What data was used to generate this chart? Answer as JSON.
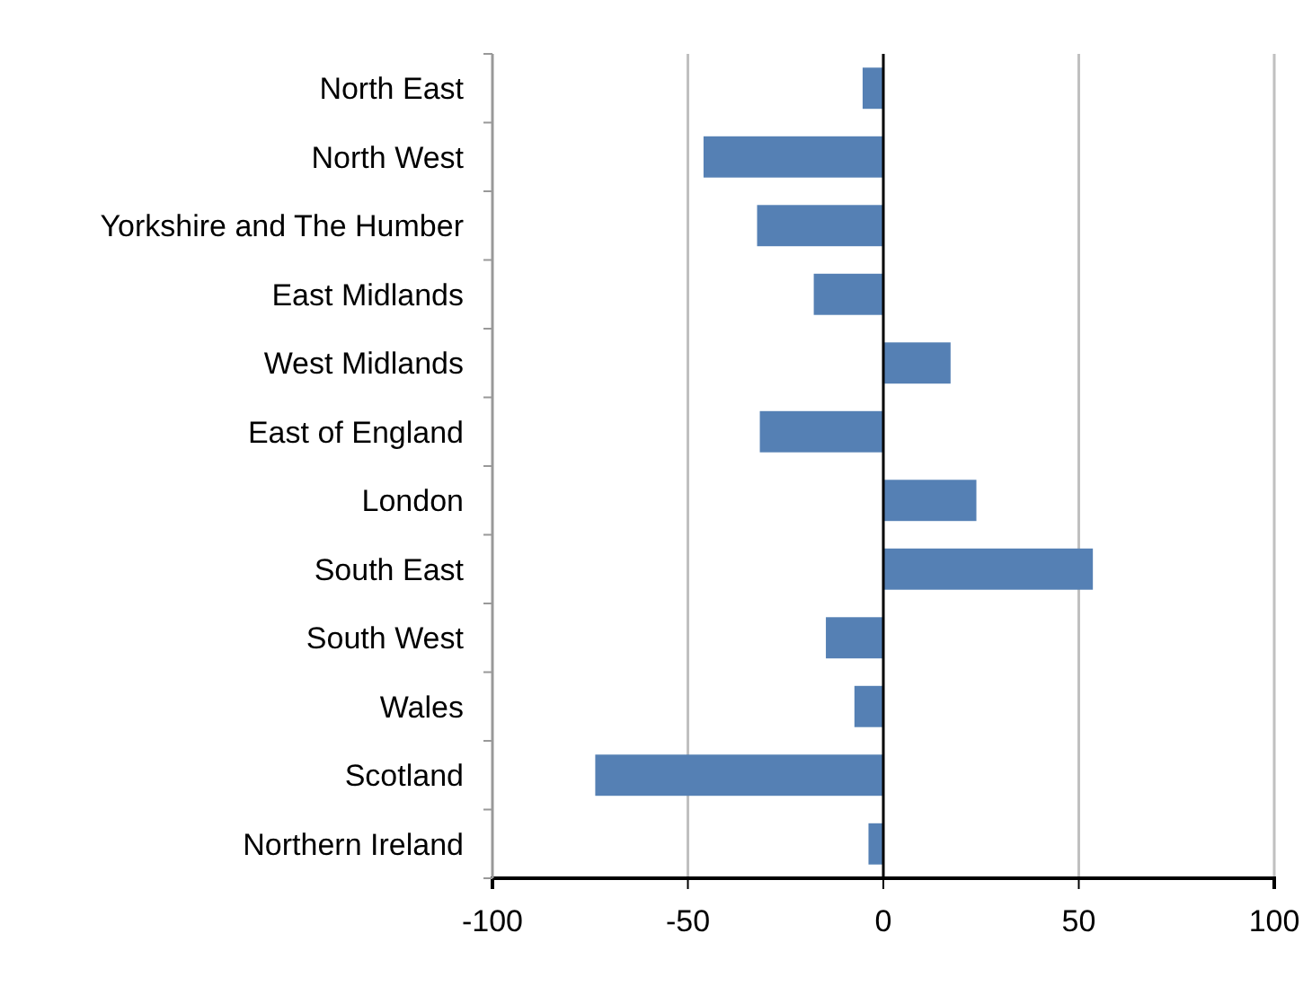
{
  "chart_data": {
    "type": "bar",
    "orientation": "horizontal",
    "categories": [
      "North East",
      "North West",
      "Yorkshire and The Humber",
      "East Midlands",
      "West Midlands",
      "East of England",
      "London",
      "South East",
      "South West",
      "Wales",
      "Scotland",
      "Northern Ireland"
    ],
    "values": [
      -5.3,
      -46,
      -32.3,
      -17.8,
      17.2,
      -31.6,
      23.8,
      53.6,
      -14.7,
      -7.4,
      -73.7,
      -3.8
    ],
    "color": "#5580b4",
    "xlim": [
      -100,
      100
    ],
    "xticks": [
      -100,
      -50,
      0,
      50,
      100
    ],
    "grid": "x"
  }
}
